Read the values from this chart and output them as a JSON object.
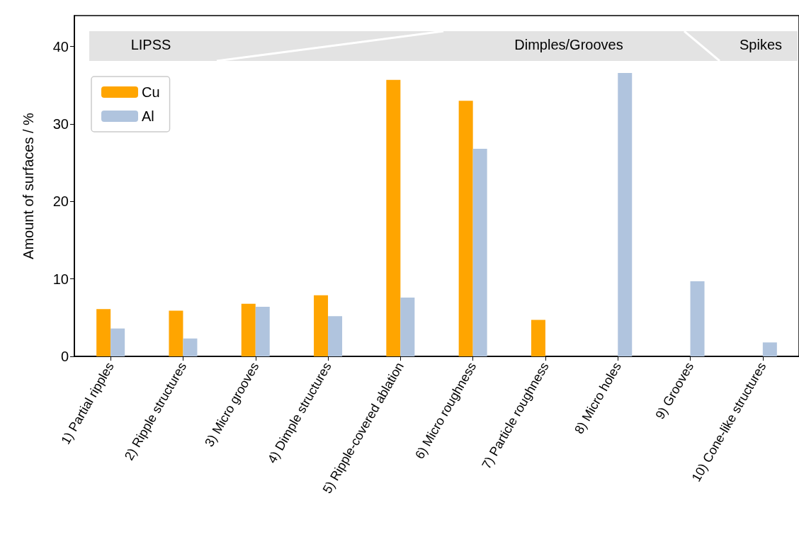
{
  "chart_data": {
    "type": "bar",
    "ylabel": "Amount of surfaces / %",
    "categories": [
      "1) Partial ripples",
      "2) Ripple structures",
      "3) Micro grooves",
      "4) Dimple structures",
      "5) Ripple-covered ablation",
      "6) Micro roughness",
      "7) Particle roughness",
      "8) Micro holes",
      "9) Grooves",
      "10) Cone-like structures"
    ],
    "series": [
      {
        "name": "Cu",
        "color": "#ffa500",
        "values": [
          6.1,
          5.9,
          6.8,
          7.9,
          35.7,
          33.0,
          4.7,
          null,
          null,
          null
        ]
      },
      {
        "name": "Al",
        "color": "#b0c4de",
        "values": [
          3.6,
          2.3,
          6.4,
          5.2,
          7.6,
          26.8,
          null,
          36.6,
          9.7,
          1.8
        ]
      }
    ],
    "ylim": [
      0,
      44
    ],
    "yticks": [
      0,
      10,
      20,
      30,
      40
    ],
    "legend": "top left",
    "grid": false,
    "annotations": [
      "LIPSS",
      "Dimples/Grooves",
      "Spikes"
    ]
  }
}
